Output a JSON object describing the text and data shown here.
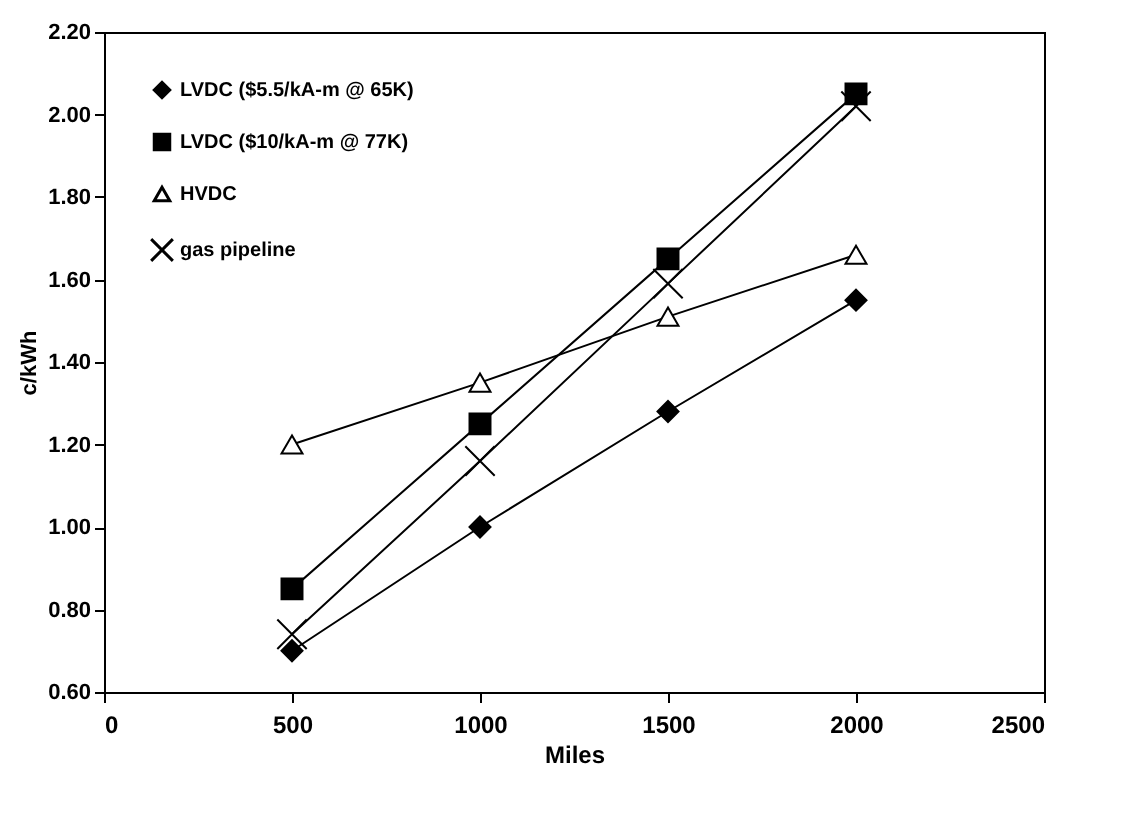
{
  "chart_data": {
    "type": "line",
    "xlabel": "Miles",
    "ylabel": "c/kWh",
    "x": [
      500,
      1000,
      1500,
      2000
    ],
    "series": [
      {
        "name": "LVDC ($5.5/kA-m @ 65K)",
        "color": "#000000",
        "marker": "diamond",
        "values": [
          0.7,
          1.0,
          1.28,
          1.55
        ]
      },
      {
        "name": "LVDC ($10/kA-m @ 77K)",
        "color": "#000000",
        "marker": "square",
        "values": [
          0.85,
          1.25,
          1.65,
          2.05
        ]
      },
      {
        "name": "HVDC",
        "color": "#000000",
        "marker": "triangle",
        "values": [
          1.2,
          1.35,
          1.51,
          1.66
        ]
      },
      {
        "name": "gas pipeline",
        "color": "#000000",
        "marker": "cross",
        "values": [
          0.74,
          1.16,
          1.59,
          2.02
        ]
      }
    ],
    "xlim": [
      0,
      2500
    ],
    "xticks": [
      0,
      500,
      1000,
      1500,
      2000,
      2500
    ],
    "ylim": [
      0.6,
      2.2
    ],
    "yticks": [
      {
        "value": 0.6,
        "label": "0.60"
      },
      {
        "value": 0.8,
        "label": "0.80"
      },
      {
        "value": 1.0,
        "label": "1.00"
      },
      {
        "value": 1.2,
        "label": "1.20"
      },
      {
        "value": 1.4,
        "label": "1.40"
      },
      {
        "value": 1.6,
        "label": "1.60"
      },
      {
        "value": 1.8,
        "label": "1.80"
      },
      {
        "value": 2.0,
        "label": "2.00"
      },
      {
        "value": 2.2,
        "label": "2.20"
      }
    ],
    "grid": false,
    "legend": "top left",
    "line_style": "solid"
  }
}
